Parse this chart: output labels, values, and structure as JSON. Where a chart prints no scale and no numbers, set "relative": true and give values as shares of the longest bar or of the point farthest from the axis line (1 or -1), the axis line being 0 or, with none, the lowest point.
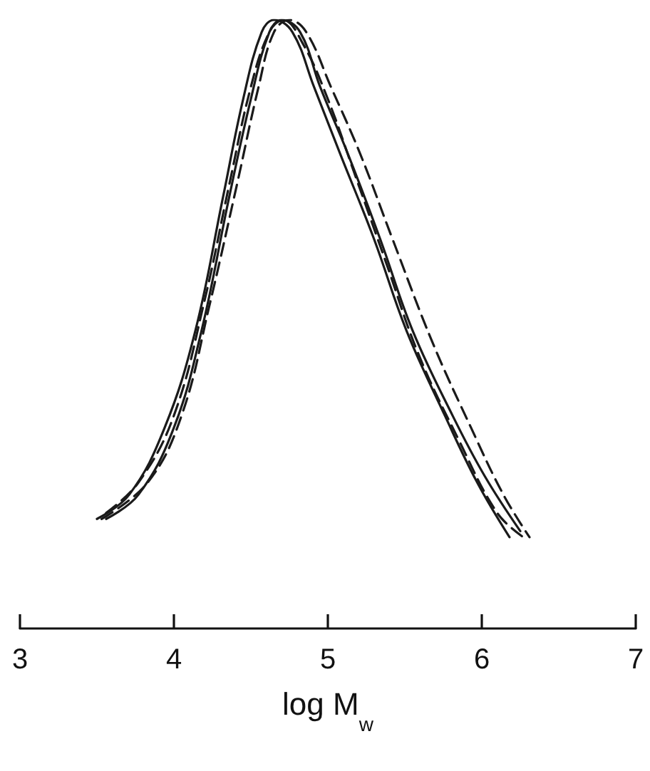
{
  "chart_data": {
    "type": "line",
    "relative": true,
    "xlabel": "log M$_{w}$",
    "xlim": [
      3,
      7
    ],
    "xticks": [
      3,
      4,
      5,
      6,
      7
    ],
    "grid": false,
    "marker": "none",
    "series": [
      {
        "color": "#1a1a1a",
        "line_style": "solid",
        "x": [
          3.5,
          3.71,
          3.94,
          4.14,
          4.32,
          4.45,
          4.57,
          4.65,
          4.77,
          4.91,
          5.08,
          5.3,
          5.51,
          5.76,
          5.97,
          6.18
        ],
        "values": [
          0.18,
          0.22,
          0.33,
          0.49,
          0.71,
          0.87,
          0.98,
          1.0,
          0.98,
          0.89,
          0.78,
          0.64,
          0.49,
          0.35,
          0.24,
          0.15
        ]
      },
      {
        "color": "#1a1a1a",
        "line_style": "solid",
        "x": [
          3.56,
          3.77,
          4.0,
          4.18,
          4.36,
          4.5,
          4.62,
          4.7,
          4.82,
          4.95,
          5.13,
          5.34,
          5.55,
          5.81,
          6.02,
          6.25
        ],
        "values": [
          0.18,
          0.22,
          0.33,
          0.49,
          0.71,
          0.87,
          0.98,
          1.0,
          0.98,
          0.89,
          0.78,
          0.64,
          0.49,
          0.35,
          0.25,
          0.16
        ]
      },
      {
        "color": "#1a1a1a",
        "line_style": "dashed",
        "x": [
          3.56,
          3.77,
          4.0,
          4.2,
          4.36,
          4.5,
          4.62,
          4.71,
          4.84,
          5.0,
          5.17,
          5.38,
          5.59,
          5.85,
          6.1,
          6.27
        ],
        "values": [
          0.19,
          0.24,
          0.35,
          0.54,
          0.73,
          0.89,
          0.98,
          1.0,
          0.96,
          0.87,
          0.75,
          0.6,
          0.45,
          0.31,
          0.19,
          0.15
        ]
      },
      {
        "color": "#1a1a1a",
        "line_style": "dashed",
        "x": [
          3.53,
          3.83,
          4.05,
          4.23,
          4.41,
          4.55,
          4.65,
          4.75,
          4.86,
          5.02,
          5.21,
          5.42,
          5.68,
          5.93,
          6.14,
          6.31
        ],
        "values": [
          0.18,
          0.24,
          0.35,
          0.53,
          0.73,
          0.89,
          0.98,
          1.0,
          0.98,
          0.89,
          0.78,
          0.64,
          0.47,
          0.33,
          0.22,
          0.15
        ]
      }
    ]
  }
}
